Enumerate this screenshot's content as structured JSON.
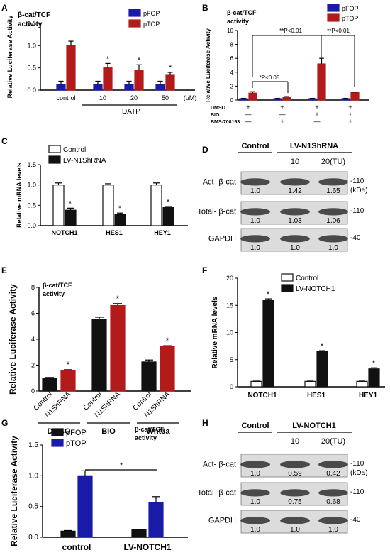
{
  "colors": {
    "blue": "#1a1aa8",
    "red": "#b31b1b",
    "black": "#111111",
    "white": "#ffffff",
    "blot_bg": "#dcdcdc",
    "band": "#4a4a4a"
  },
  "chart_data": [
    {
      "panel": "A",
      "type": "bar",
      "annotation": "β-cat/TCF activity",
      "ylabel": "Relative Luciferase Activity",
      "categories": [
        "control",
        "10",
        "20",
        "50"
      ],
      "group_label": "DATP",
      "unit": "(uM)",
      "ylim": [
        0,
        1.5
      ],
      "yticks": [
        "0.0",
        "0.5",
        "1.0",
        "1.5"
      ],
      "legend": [
        "pFOP",
        "pTOP"
      ],
      "series": [
        {
          "name": "pFOP",
          "values": [
            0.12,
            0.12,
            0.12,
            0.12
          ],
          "errors": [
            0.08,
            0.08,
            0.08,
            0.08
          ]
        },
        {
          "name": "pTOP",
          "values": [
            1.0,
            0.5,
            0.45,
            0.35
          ],
          "errors": [
            0.1,
            0.1,
            0.12,
            0.05
          ]
        }
      ],
      "sig": [
        false,
        true,
        true,
        true
      ],
      "sig_mark": "*"
    },
    {
      "panel": "B",
      "type": "bar",
      "annotation": "β-cat/TCF activity",
      "ylabel": "Relative Luciferase Activity",
      "ylim": [
        0,
        10
      ],
      "yticks": [
        "0",
        "2",
        "4",
        "6",
        "8",
        "10"
      ],
      "legend": [
        "pFOP",
        "pTOP"
      ],
      "series": [
        {
          "name": "pFOP",
          "values": [
            0.2,
            0.2,
            0.2,
            0.2
          ],
          "errors": [
            0.05,
            0.05,
            0.05,
            0.05
          ]
        },
        {
          "name": "pTOP",
          "values": [
            1.0,
            0.45,
            5.2,
            1.1
          ],
          "errors": [
            0.2,
            0.05,
            0.8,
            0.05
          ]
        }
      ],
      "conditions": [
        {
          "label": "DMSO",
          "signs": [
            "+",
            "+",
            "+",
            "+"
          ]
        },
        {
          "label": "BIO",
          "signs": [
            "—",
            "—",
            "+",
            "+"
          ]
        },
        {
          "label": "BMS-708163",
          "signs": [
            "—",
            "+",
            "—",
            "+"
          ]
        }
      ],
      "brackets": [
        "*P<0.05",
        "**P<0.01",
        "**P<0.01"
      ]
    },
    {
      "panel": "C",
      "type": "bar",
      "ylabel": "Relative mRNA levels",
      "categories": [
        "NOTCH1",
        "HES1",
        "HEY1"
      ],
      "ylim": [
        0,
        1.5
      ],
      "yticks": [
        "0.0",
        "0.5",
        "1.0",
        "1.5"
      ],
      "legend": [
        "Control",
        "LV-N1ShRNA"
      ],
      "series": [
        {
          "name": "Control",
          "values": [
            1.0,
            1.0,
            1.0
          ],
          "errors": [
            0.05,
            0.03,
            0.05
          ]
        },
        {
          "name": "LV-N1ShRNA",
          "values": [
            0.38,
            0.27,
            0.45
          ],
          "errors": [
            0.05,
            0.04,
            0.02
          ]
        }
      ],
      "sig_mark": "*"
    },
    {
      "panel": "E",
      "type": "bar",
      "annotation": "β-cat/TCF activity",
      "ylabel": "Relative Luciferase Activity",
      "groups": [
        "DMSO",
        "BIO",
        "Wnt3a"
      ],
      "bar_labels": [
        "Control",
        "N1ShRNA"
      ],
      "ylim": [
        0,
        8
      ],
      "yticks": [
        "0",
        "2",
        "4",
        "6",
        "8"
      ],
      "series": [
        {
          "name": "Control",
          "values": [
            1.0,
            5.55,
            2.25
          ],
          "errors": [
            0.05,
            0.15,
            0.15
          ]
        },
        {
          "name": "N1ShRNA",
          "values": [
            1.6,
            6.6,
            3.45
          ],
          "errors": [
            0.05,
            0.15,
            0.05
          ]
        }
      ],
      "sig_mark": "*"
    },
    {
      "panel": "F",
      "type": "bar",
      "ylabel": "Relative mRNA levels",
      "categories": [
        "NOTCH1",
        "HES1",
        "HEY1"
      ],
      "ylim": [
        0,
        20
      ],
      "yticks": [
        "0",
        "5",
        "10",
        "15",
        "20"
      ],
      "legend": [
        "Control",
        "LV-NOTCH1"
      ],
      "series": [
        {
          "name": "Control",
          "values": [
            1.0,
            1.0,
            1.0
          ],
          "errors": [
            0.05,
            0.05,
            0.05
          ]
        },
        {
          "name": "LV-NOTCH1",
          "values": [
            16.0,
            6.5,
            3.3
          ],
          "errors": [
            0.2,
            0.15,
            0.2
          ]
        }
      ],
      "sig_mark": "*"
    },
    {
      "panel": "G",
      "type": "bar",
      "annotation": "β-cat/TCF activity",
      "ylabel": "Relative Luciferase Activity",
      "categories": [
        "control",
        "LV-NOTCH1"
      ],
      "ylim": [
        0,
        1.5
      ],
      "yticks": [
        "0.0",
        "0.5",
        "1.0",
        "1.5"
      ],
      "legend": [
        "pFOP",
        "pTOP"
      ],
      "series": [
        {
          "name": "pFOP",
          "values": [
            0.1,
            0.12
          ],
          "errors": [
            0.01,
            0.01
          ]
        },
        {
          "name": "pTOP",
          "values": [
            1.0,
            0.56
          ],
          "errors": [
            0.08,
            0.1
          ]
        }
      ],
      "sig_mark": "*"
    }
  ],
  "blots": {
    "D": {
      "header_control": "Control",
      "header_lv": "LV-N1ShRNA",
      "lane_labels": [
        "10",
        "20(TU)"
      ],
      "rows": [
        {
          "label": "Act- β-cat",
          "vals": [
            "1.0",
            "1.42",
            "1.65"
          ],
          "mw": "-110",
          "unit": "(kDa)"
        },
        {
          "label": "Total- β-cat",
          "vals": [
            "1.0",
            "1.03",
            "1.06"
          ],
          "mw": "-110"
        },
        {
          "label": "GAPDH",
          "vals": [
            "1.0",
            "1.0",
            "1.0"
          ],
          "mw": "-40"
        }
      ]
    },
    "H": {
      "header_control": "Control",
      "header_lv": "LV-NOTCH1",
      "lane_labels": [
        "10",
        "20(TU)"
      ],
      "rows": [
        {
          "label": "Act- β-cat",
          "vals": [
            "1.0",
            "0.59",
            "0.42"
          ],
          "mw": "-110",
          "unit": "(kDa)"
        },
        {
          "label": "Total- β-cat",
          "vals": [
            "1.0",
            "0.75",
            "0.68"
          ],
          "mw": "-110"
        },
        {
          "label": "GAPDH",
          "vals": [
            "1.0",
            "1.0",
            "1.0"
          ],
          "mw": "-40"
        }
      ]
    }
  },
  "panel_letters": [
    "A",
    "B",
    "C",
    "D",
    "E",
    "F",
    "G",
    "H"
  ]
}
